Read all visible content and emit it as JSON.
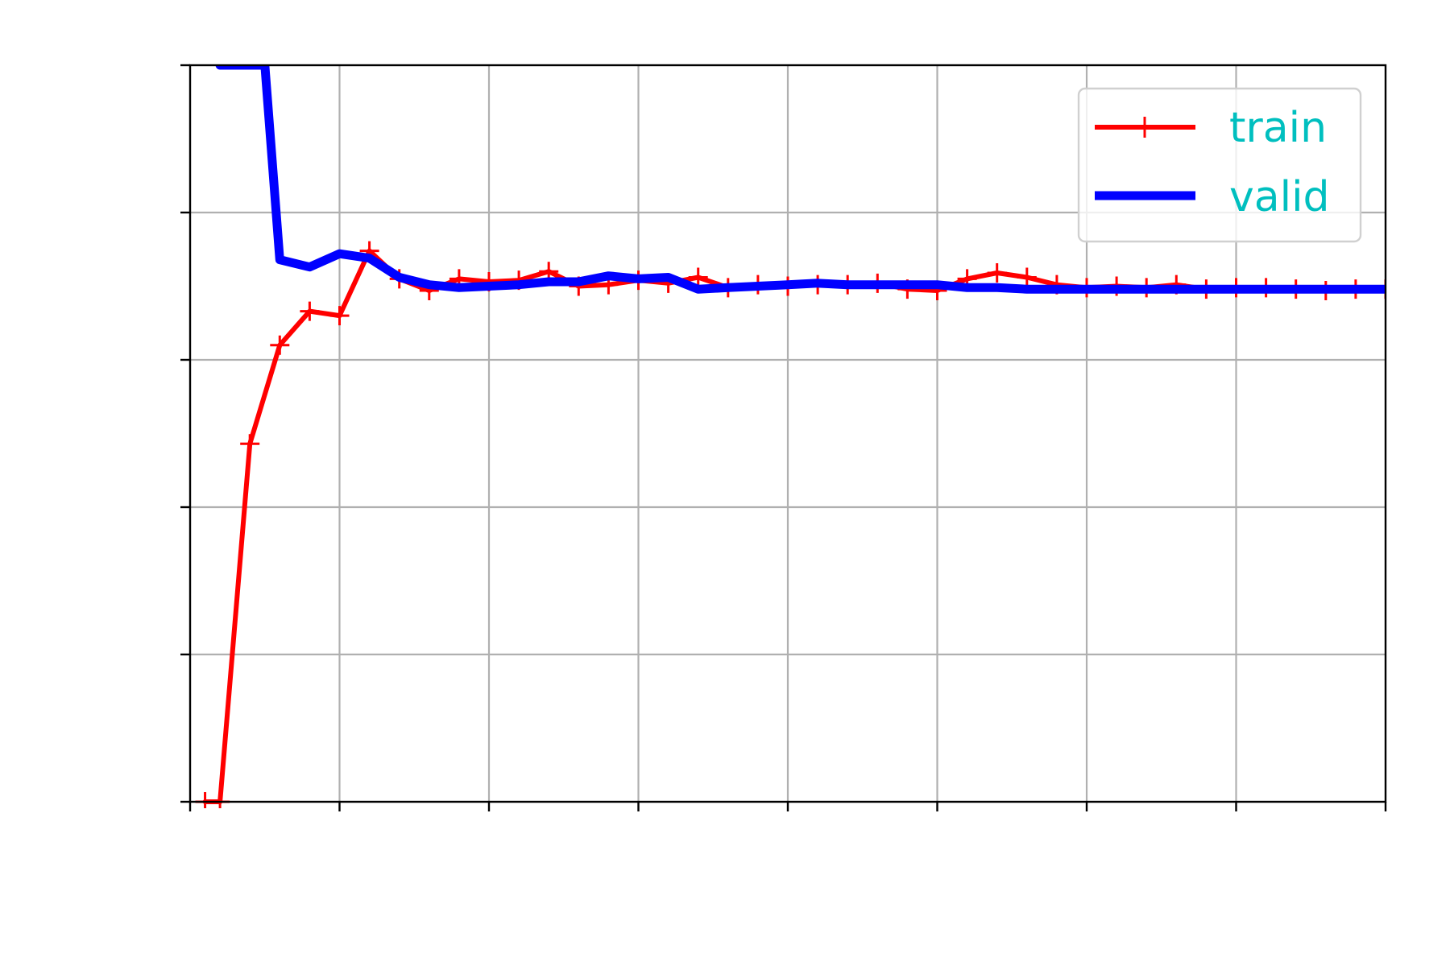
{
  "chart_data": {
    "type": "line",
    "title": "",
    "xlabel": "",
    "ylabel": "",
    "xlim": [
      0,
      40
    ],
    "ylim": [
      0,
      5
    ],
    "xticks": [
      0,
      5,
      10,
      15,
      20,
      25,
      30,
      35,
      40
    ],
    "yticks": [
      0,
      1,
      2,
      3,
      4,
      5
    ],
    "grid": true,
    "legend": "top-right",
    "series": [
      {
        "name": "train",
        "color": "#ff0000",
        "marker": "plus",
        "x": [
          0.5,
          1,
          2,
          3,
          4,
          5,
          6,
          7,
          8,
          9,
          10,
          11,
          12,
          13,
          14,
          15,
          16,
          17,
          18,
          19,
          20,
          21,
          22,
          23,
          24,
          25,
          26,
          27,
          28,
          29,
          30,
          31,
          32,
          33,
          34,
          35,
          36,
          37,
          38,
          39,
          40
        ],
        "y": [
          0.0,
          0.0,
          2.43,
          3.1,
          3.33,
          3.3,
          3.74,
          3.55,
          3.47,
          3.55,
          3.53,
          3.54,
          3.6,
          3.5,
          3.51,
          3.54,
          3.52,
          3.56,
          3.49,
          3.51,
          3.5,
          3.51,
          3.51,
          3.52,
          3.48,
          3.47,
          3.55,
          3.59,
          3.56,
          3.51,
          3.49,
          3.5,
          3.49,
          3.51,
          3.48,
          3.49,
          3.49,
          3.48,
          3.47,
          3.48,
          3.48
        ]
      },
      {
        "name": "valid",
        "color": "#0000ff",
        "marker": "none",
        "x": [
          1,
          2.5,
          3,
          4,
          5,
          6,
          7,
          8,
          9,
          10,
          11,
          12,
          13,
          14,
          15,
          16,
          17,
          18,
          19,
          20,
          21,
          22,
          23,
          24,
          25,
          26,
          27,
          28,
          29,
          30,
          31,
          32,
          33,
          34,
          35,
          36,
          37,
          38,
          39,
          40
        ],
        "y": [
          5.0,
          5.0,
          3.68,
          3.63,
          3.72,
          3.69,
          3.56,
          3.51,
          3.49,
          3.5,
          3.51,
          3.53,
          3.53,
          3.57,
          3.55,
          3.56,
          3.48,
          3.49,
          3.5,
          3.51,
          3.52,
          3.51,
          3.51,
          3.51,
          3.51,
          3.49,
          3.49,
          3.48,
          3.48,
          3.48,
          3.48,
          3.48,
          3.48,
          3.48,
          3.48,
          3.48,
          3.48,
          3.48,
          3.48,
          3.48
        ]
      }
    ]
  }
}
